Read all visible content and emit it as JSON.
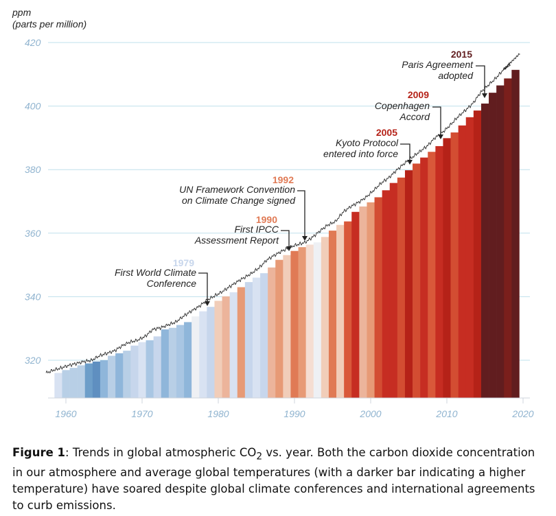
{
  "chart_data": {
    "type": "area",
    "ylabel": "ppm",
    "ylabel_sub": "(parts per million)",
    "ylim": [
      306,
      421
    ],
    "xlim": [
      1958,
      2021
    ],
    "yticks": [
      320,
      340,
      360,
      380,
      400,
      420
    ],
    "xticks": [
      1960,
      1970,
      1980,
      1990,
      2000,
      2010,
      2020
    ],
    "grid": true,
    "years": [
      1959,
      1960,
      1961,
      1962,
      1963,
      1964,
      1965,
      1966,
      1967,
      1968,
      1969,
      1970,
      1971,
      1972,
      1973,
      1974,
      1975,
      1976,
      1977,
      1978,
      1979,
      1980,
      1981,
      1982,
      1983,
      1984,
      1985,
      1986,
      1987,
      1988,
      1989,
      1990,
      1991,
      1992,
      1993,
      1994,
      1995,
      1996,
      1997,
      1998,
      1999,
      2000,
      2001,
      2002,
      2003,
      2004,
      2005,
      2006,
      2007,
      2008,
      2009,
      2010,
      2011,
      2012,
      2013,
      2014,
      2015,
      2016,
      2017,
      2018,
      2019
    ],
    "co2_ppm": [
      316.0,
      316.9,
      317.6,
      318.4,
      319.0,
      319.6,
      320.0,
      321.4,
      322.2,
      323.0,
      324.6,
      325.7,
      326.3,
      327.5,
      329.7,
      330.2,
      331.1,
      332.0,
      333.8,
      335.4,
      336.8,
      338.7,
      340.1,
      341.4,
      343.0,
      344.6,
      346.0,
      347.4,
      349.2,
      351.6,
      353.1,
      354.4,
      355.6,
      356.4,
      357.1,
      358.8,
      360.8,
      362.6,
      363.7,
      366.7,
      368.4,
      369.7,
      371.3,
      373.5,
      375.8,
      377.5,
      379.8,
      381.9,
      383.8,
      385.6,
      387.4,
      389.9,
      391.7,
      393.9,
      396.5,
      398.6,
      400.8,
      404.2,
      406.5,
      408.7,
      411.4
    ],
    "temperature_shade": [
      "#d8e2f2",
      "#b8cfe6",
      "#b8cfe6",
      "#b8cfe6",
      "#6d9ec9",
      "#5f8fc0",
      "#8fb6da",
      "#b8cfe6",
      "#8fb6da",
      "#b8cfe6",
      "#c7d6ec",
      "#d8e2f2",
      "#a9c6e3",
      "#c7d6ec",
      "#8fb6da",
      "#b8cfe6",
      "#a9c6e3",
      "#8fb6da",
      "#eef0f4",
      "#d8e2f2",
      "#c7d6ec",
      "#f1cdb9",
      "#ecb49b",
      "#d8e2f2",
      "#e79a76",
      "#c7d6ec",
      "#d8e2f2",
      "#c7d6ec",
      "#ecb49b",
      "#e79a76",
      "#f1cdb9",
      "#e07a55",
      "#e79a76",
      "#f5ddd2",
      "#eef0f4",
      "#f1cdb9",
      "#e07a55",
      "#f1cdb9",
      "#d9583a",
      "#c62d22",
      "#ecb49b",
      "#e79a76",
      "#d34d32",
      "#c62d22",
      "#c62d22",
      "#d34d32",
      "#b52218",
      "#d34d32",
      "#c62d22",
      "#d9583a",
      "#c62d22",
      "#b52218",
      "#d34d32",
      "#c62d22",
      "#c62d22",
      "#b52218",
      "#611d1f",
      "#611d1f",
      "#611d1f",
      "#7a1f1c",
      "#611d1f"
    ],
    "annotations": [
      {
        "year_label": "1979",
        "text": [
          "First World Climate",
          "Conference"
        ],
        "color": "#c7d6ec",
        "event_year": 1979
      },
      {
        "year_label": "1990",
        "text": [
          "First IPCC",
          "Assessment Report"
        ],
        "color": "#e07a55",
        "event_year": 1990
      },
      {
        "year_label": "1992",
        "text": [
          "UN Framework Convention",
          "on Climate Change signed"
        ],
        "color": "#e07a55",
        "event_year": 1992
      },
      {
        "year_label": "2005",
        "text": [
          "Kyoto Protocol",
          "entered into force"
        ],
        "color": "#b52218",
        "event_year": 2005
      },
      {
        "year_label": "2009",
        "text": [
          "Copenhagen",
          "Accord"
        ],
        "color": "#b52218",
        "event_year": 2009
      },
      {
        "year_label": "2015",
        "text": [
          "Paris Agreement",
          "adopted"
        ],
        "color": "#611d1f",
        "event_year": 2015
      }
    ]
  },
  "caption": {
    "label": "Figure 1",
    "text_1": ": Trends in global atmospheric CO",
    "subscript": "2",
    "text_2": " vs. year. Both the carbon dioxide concentration in our atmosphere and average global temperatures (with a darker bar indicating a higher temperature) have soared despite global climate conferences and international agreements to curb emissions."
  }
}
